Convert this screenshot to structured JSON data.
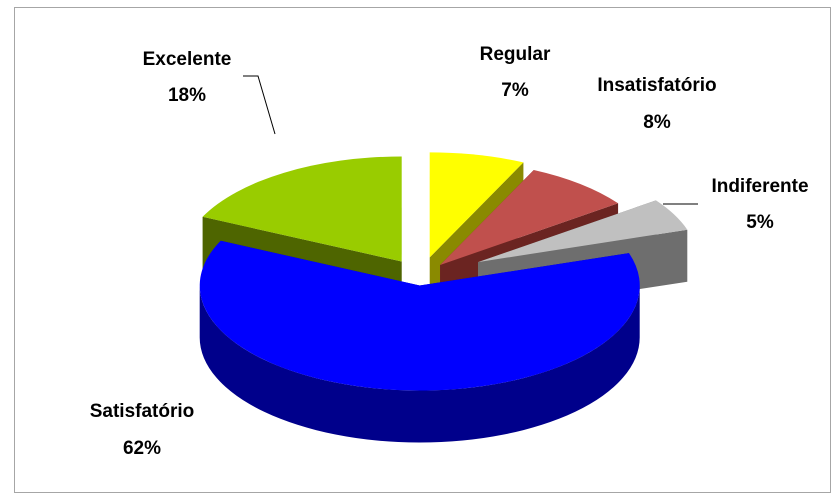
{
  "chart_data": {
    "type": "pie",
    "style": "3d-exploded",
    "categories": [
      "Regular",
      "Insatisfatório",
      "Indiferente",
      "Satisfatório",
      "Excelente"
    ],
    "values": [
      7,
      8,
      5,
      62,
      18
    ],
    "labels": [
      "7%",
      "8%",
      "5%",
      "62%",
      "18%"
    ],
    "colors": [
      "#ffff00",
      "#c0504d",
      "#c0c0c0",
      "#0000ff",
      "#99cc00"
    ],
    "side_colors": [
      "#8a8a00",
      "#6b2421",
      "#6e6e6e",
      "#00008b",
      "#4e6500"
    ],
    "legend": "none"
  }
}
